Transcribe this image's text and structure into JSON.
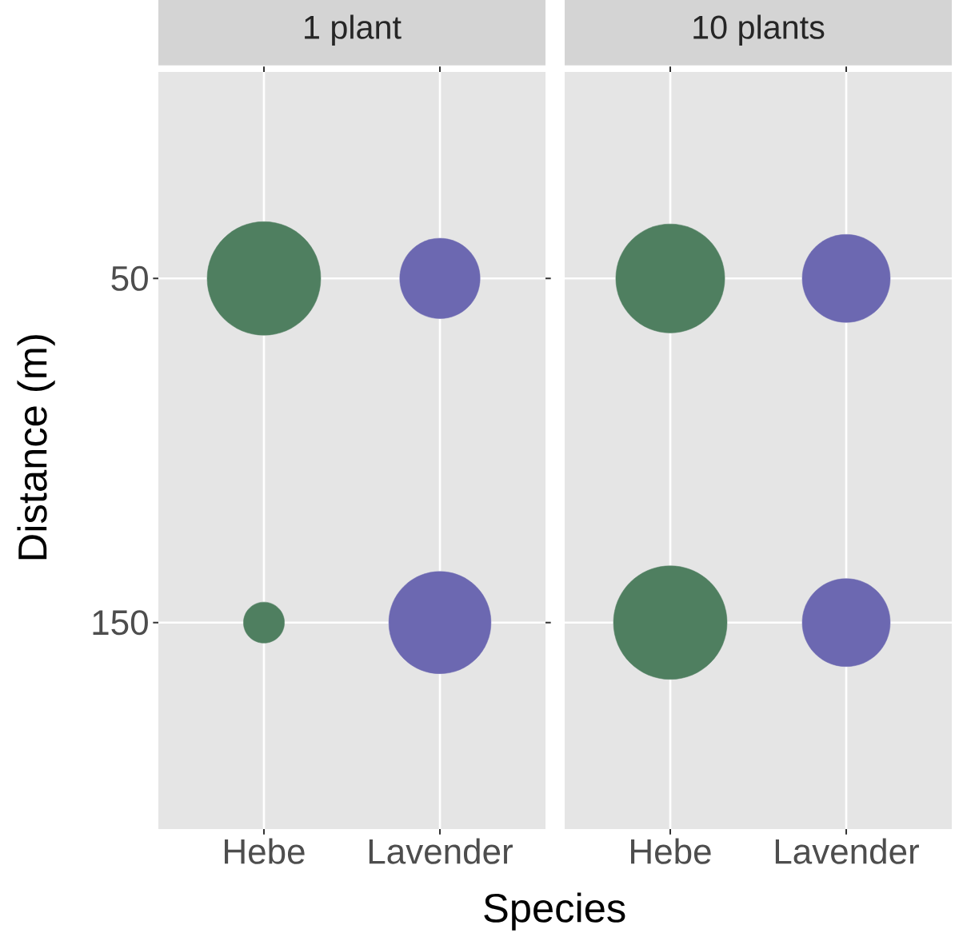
{
  "chart_data": [
    {
      "type": "bubble",
      "title": "1 plant",
      "xlabel": "Species",
      "ylabel": "Distance (m)",
      "categories": [
        "Hebe",
        "Lavender"
      ],
      "ylim": [
        210,
        -10
      ],
      "yticks": [
        50,
        150
      ],
      "grid": true,
      "series": [
        {
          "values": [
            50,
            50
          ],
          "colors": [
            "#4f7f60",
            "#6c68b1"
          ],
          "sizes": [
            1.0,
            0.5
          ]
        },
        {
          "values": [
            150,
            150
          ],
          "colors": [
            "#4f7f60",
            "#6c68b1"
          ],
          "sizes": [
            0.13,
            0.81
          ]
        }
      ]
    },
    {
      "type": "bubble",
      "title": "10 plants",
      "categories": [
        "Hebe",
        "Lavender"
      ],
      "ylim": [
        210,
        -10
      ],
      "yticks": [
        50,
        150
      ],
      "grid": true,
      "tick_labels": "x",
      "series": [
        {
          "values": [
            50,
            50
          ],
          "colors": [
            "#4f7f60",
            "#6c68b1"
          ],
          "sizes": [
            0.92,
            0.6
          ]
        },
        {
          "values": [
            150,
            150
          ],
          "colors": [
            "#4f7f60",
            "#6c68b1"
          ],
          "sizes": [
            1.0,
            0.6
          ]
        }
      ]
    }
  ]
}
